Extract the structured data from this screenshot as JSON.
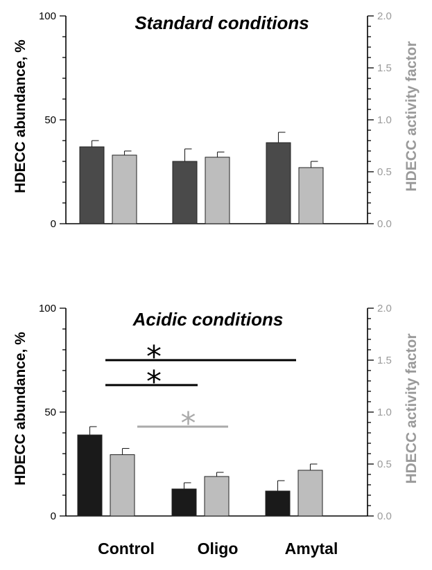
{
  "colors": {
    "axis": "#000000",
    "left_axis_text": "#000000",
    "right_axis_text": "#9a9a9a",
    "series_light": "#bdbdbd",
    "series_dark_standard": "#4a4a4a",
    "series_dark_acidic": "#1a1a1a",
    "sig_black": "#000000",
    "sig_gray": "#aaaaaa"
  },
  "categories": [
    "Control",
    "Oligo",
    "Amytal"
  ],
  "chart_data": [
    {
      "type": "bar",
      "title": "Standard conditions",
      "ylabel": "HDECC abundance, %",
      "ylabel_right": "HDECC activity factor",
      "ylim": [
        0,
        100
      ],
      "ylim_right": [
        0,
        2
      ],
      "yticks": [
        "0",
        "50",
        "100"
      ],
      "yticks_right": [
        "0.0",
        "0.5",
        "1.0",
        "1.5",
        "2.0"
      ],
      "categories": [
        "Control",
        "Oligo",
        "Amytal"
      ],
      "series": [
        {
          "axis": "left",
          "values": [
            37,
            30,
            39
          ],
          "errors": [
            3,
            6,
            5
          ]
        },
        {
          "axis": "right",
          "values": [
            0.66,
            0.64,
            0.54
          ],
          "errors": [
            0.04,
            0.05,
            0.06
          ]
        }
      ]
    },
    {
      "type": "bar",
      "title": "Acidic conditions",
      "ylabel": "HDECC abundance, %",
      "ylabel_right": "HDECC activity factor",
      "ylim": [
        0,
        100
      ],
      "ylim_right": [
        0,
        2
      ],
      "yticks": [
        "0",
        "50",
        "100"
      ],
      "yticks_right": [
        "0.0",
        "0.5",
        "1.0",
        "1.5",
        "2.0"
      ],
      "categories": [
        "Control",
        "Oligo",
        "Amytal"
      ],
      "series": [
        {
          "axis": "left",
          "values": [
            39,
            13,
            12
          ],
          "errors": [
            4,
            3,
            5
          ]
        },
        {
          "axis": "right",
          "values": [
            0.59,
            0.38,
            0.44
          ],
          "errors": [
            0.06,
            0.04,
            0.06
          ]
        }
      ],
      "significance": [
        {
          "from": 0,
          "to": 2,
          "y": 75,
          "label": "*",
          "color": "black"
        },
        {
          "from": 0,
          "to": 1,
          "y": 63,
          "label": "*",
          "color": "black"
        },
        {
          "from": 0,
          "to": 1,
          "y": 43,
          "label": "*",
          "color": "gray"
        }
      ]
    }
  ]
}
